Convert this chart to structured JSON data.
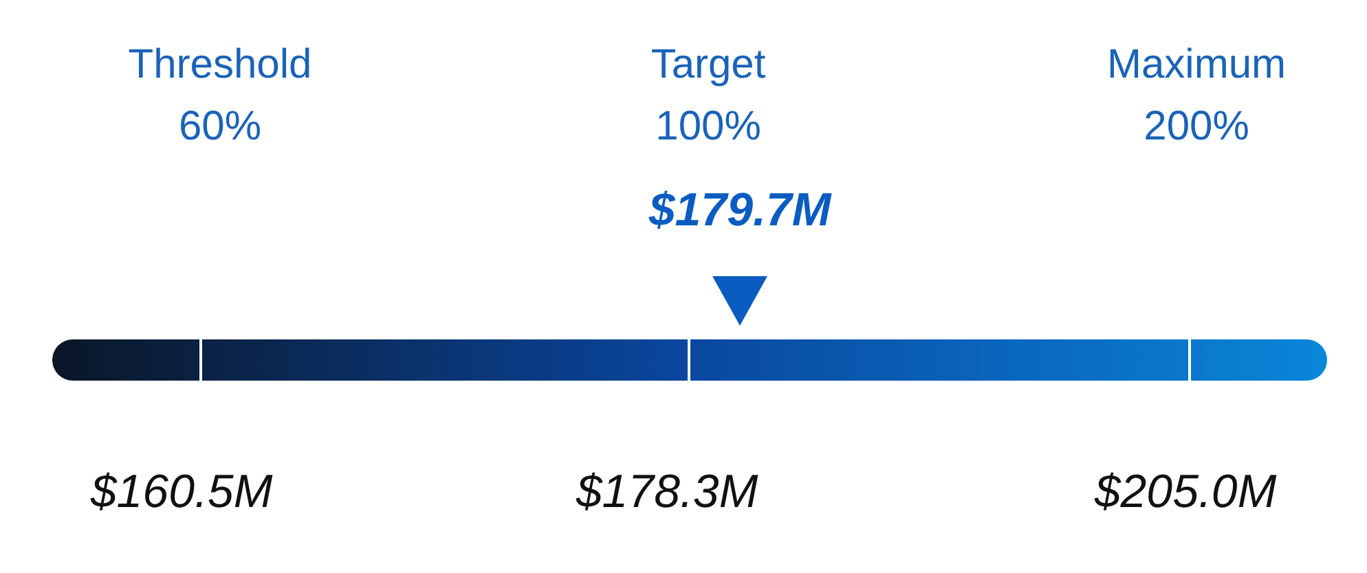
{
  "chart_data": {
    "type": "other",
    "categories": [
      "Threshold",
      "Target",
      "Maximum"
    ],
    "values": [
      60,
      100,
      200
    ],
    "value_labels": [
      "60%",
      "100%",
      "200%"
    ],
    "annotations": [
      "$179.7M",
      "$160.5M",
      "$178.3M",
      "$205.0M"
    ]
  }
}
